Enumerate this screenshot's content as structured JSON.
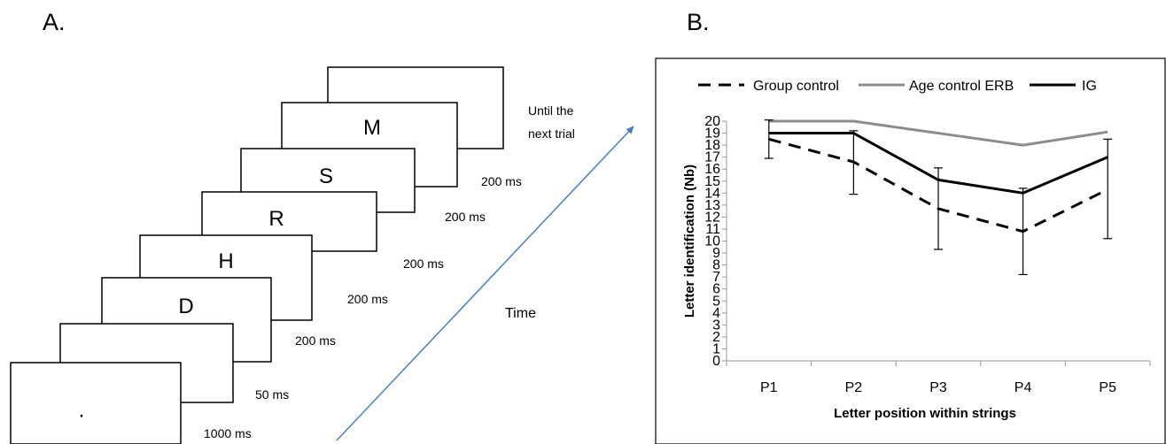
{
  "panel_a": {
    "label": "A.",
    "time_label": "Time",
    "frames": [
      {
        "letter": "",
        "duration": "Until the\nnext trial"
      },
      {
        "letter": "M",
        "duration": "200 ms"
      },
      {
        "letter": "S",
        "duration": "200 ms"
      },
      {
        "letter": "R",
        "duration": "200 ms"
      },
      {
        "letter": "H",
        "duration": "200 ms"
      },
      {
        "letter": "D",
        "duration": "200 ms"
      },
      {
        "letter": "",
        "duration": "50 ms"
      },
      {
        "letter": "·",
        "duration": "1000 ms"
      }
    ]
  },
  "panel_b": {
    "label": "B."
  },
  "colors": {
    "black": "#000000",
    "gray": "#8c8c8c",
    "arrow": "#4a7ebb"
  },
  "chart_data": {
    "type": "line",
    "title": "",
    "xlabel": "Letter position within strings",
    "ylabel": "Letter identification (Nb)",
    "categories": [
      "P1",
      "P2",
      "P3",
      "P4",
      "P5"
    ],
    "ylim": [
      0,
      20
    ],
    "yticks": [
      0,
      1,
      2,
      3,
      4,
      5,
      6,
      7,
      8,
      9,
      10,
      11,
      12,
      13,
      14,
      15,
      16,
      17,
      18,
      19,
      20
    ],
    "grid": false,
    "legend_position": "top",
    "series": [
      {
        "name": "Group control",
        "style": "dashed",
        "color": "#000000",
        "values": [
          18.5,
          16.6,
          12.7,
          10.8,
          14.3
        ],
        "error": [
          [
            16.9,
            20.1
          ],
          [
            13.9,
            19.2
          ],
          [
            9.3,
            16.1
          ],
          [
            7.2,
            14.4
          ],
          [
            10.2,
            18.5
          ]
        ]
      },
      {
        "name": "Age control ERB",
        "style": "solid",
        "color": "#8c8c8c",
        "values": [
          20,
          20,
          19,
          18,
          19.1
        ]
      },
      {
        "name": "IG",
        "style": "solid",
        "color": "#000000",
        "values": [
          19,
          19,
          15.1,
          14,
          17
        ]
      }
    ]
  }
}
